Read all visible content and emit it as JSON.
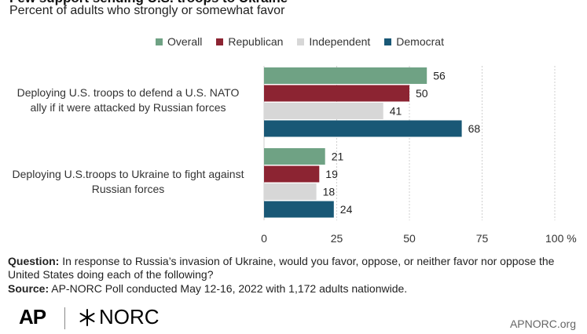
{
  "header": {
    "title": "Few support sending U.S. troops to Ukraine",
    "subtitle": "Percent of adults who strongly or somewhat favor"
  },
  "colors": {
    "Overall": "#6fa284",
    "Republican": "#8c2432",
    "Independent": "#d7d7d7",
    "Democrat": "#195876",
    "gridline": "#cfcfcf"
  },
  "chart_data": {
    "type": "bar",
    "orientation": "horizontal",
    "title": "Few support sending U.S. troops to Ukraine",
    "subtitle": "Percent of adults who strongly or somewhat favor",
    "categories": [
      "Deploying U.S. troops to defend a U.S. NATO ally if it were attacked by Russian forces",
      "Deploying U.S.troops to Ukraine to fight against Russian forces"
    ],
    "category_lines": [
      [
        "Deploying U.S. troops to defend a U.S. NATO",
        "ally if it were attacked by Russian forces"
      ],
      [
        "Deploying U.S.troops to Ukraine to fight against",
        "Russian forces"
      ]
    ],
    "series": [
      {
        "name": "Overall",
        "values": [
          56,
          21
        ]
      },
      {
        "name": "Republican",
        "values": [
          50,
          19
        ]
      },
      {
        "name": "Independent",
        "values": [
          41,
          18
        ]
      },
      {
        "name": "Democrat",
        "values": [
          68,
          24
        ]
      }
    ],
    "xlim": [
      0,
      100
    ],
    "x_ticks": [
      "0",
      "25",
      "50",
      "75",
      "100 %"
    ],
    "x_tick_values": [
      0,
      25,
      50,
      75,
      100
    ],
    "grid": true,
    "legend_position": "top"
  },
  "footer": {
    "question_label": "Question:",
    "question_text": " In response to Russia’s invasion of Ukraine, would you favor, oppose, or neither favor nor oppose the United States doing each of the following?",
    "source_label": "Source:",
    "source_text": " AP-NORC Poll conducted May 12-16, 2022 with 1,172 adults nationwide."
  },
  "logos": {
    "ap": "AP",
    "norc": "NORC",
    "site": "APNORC.org"
  }
}
